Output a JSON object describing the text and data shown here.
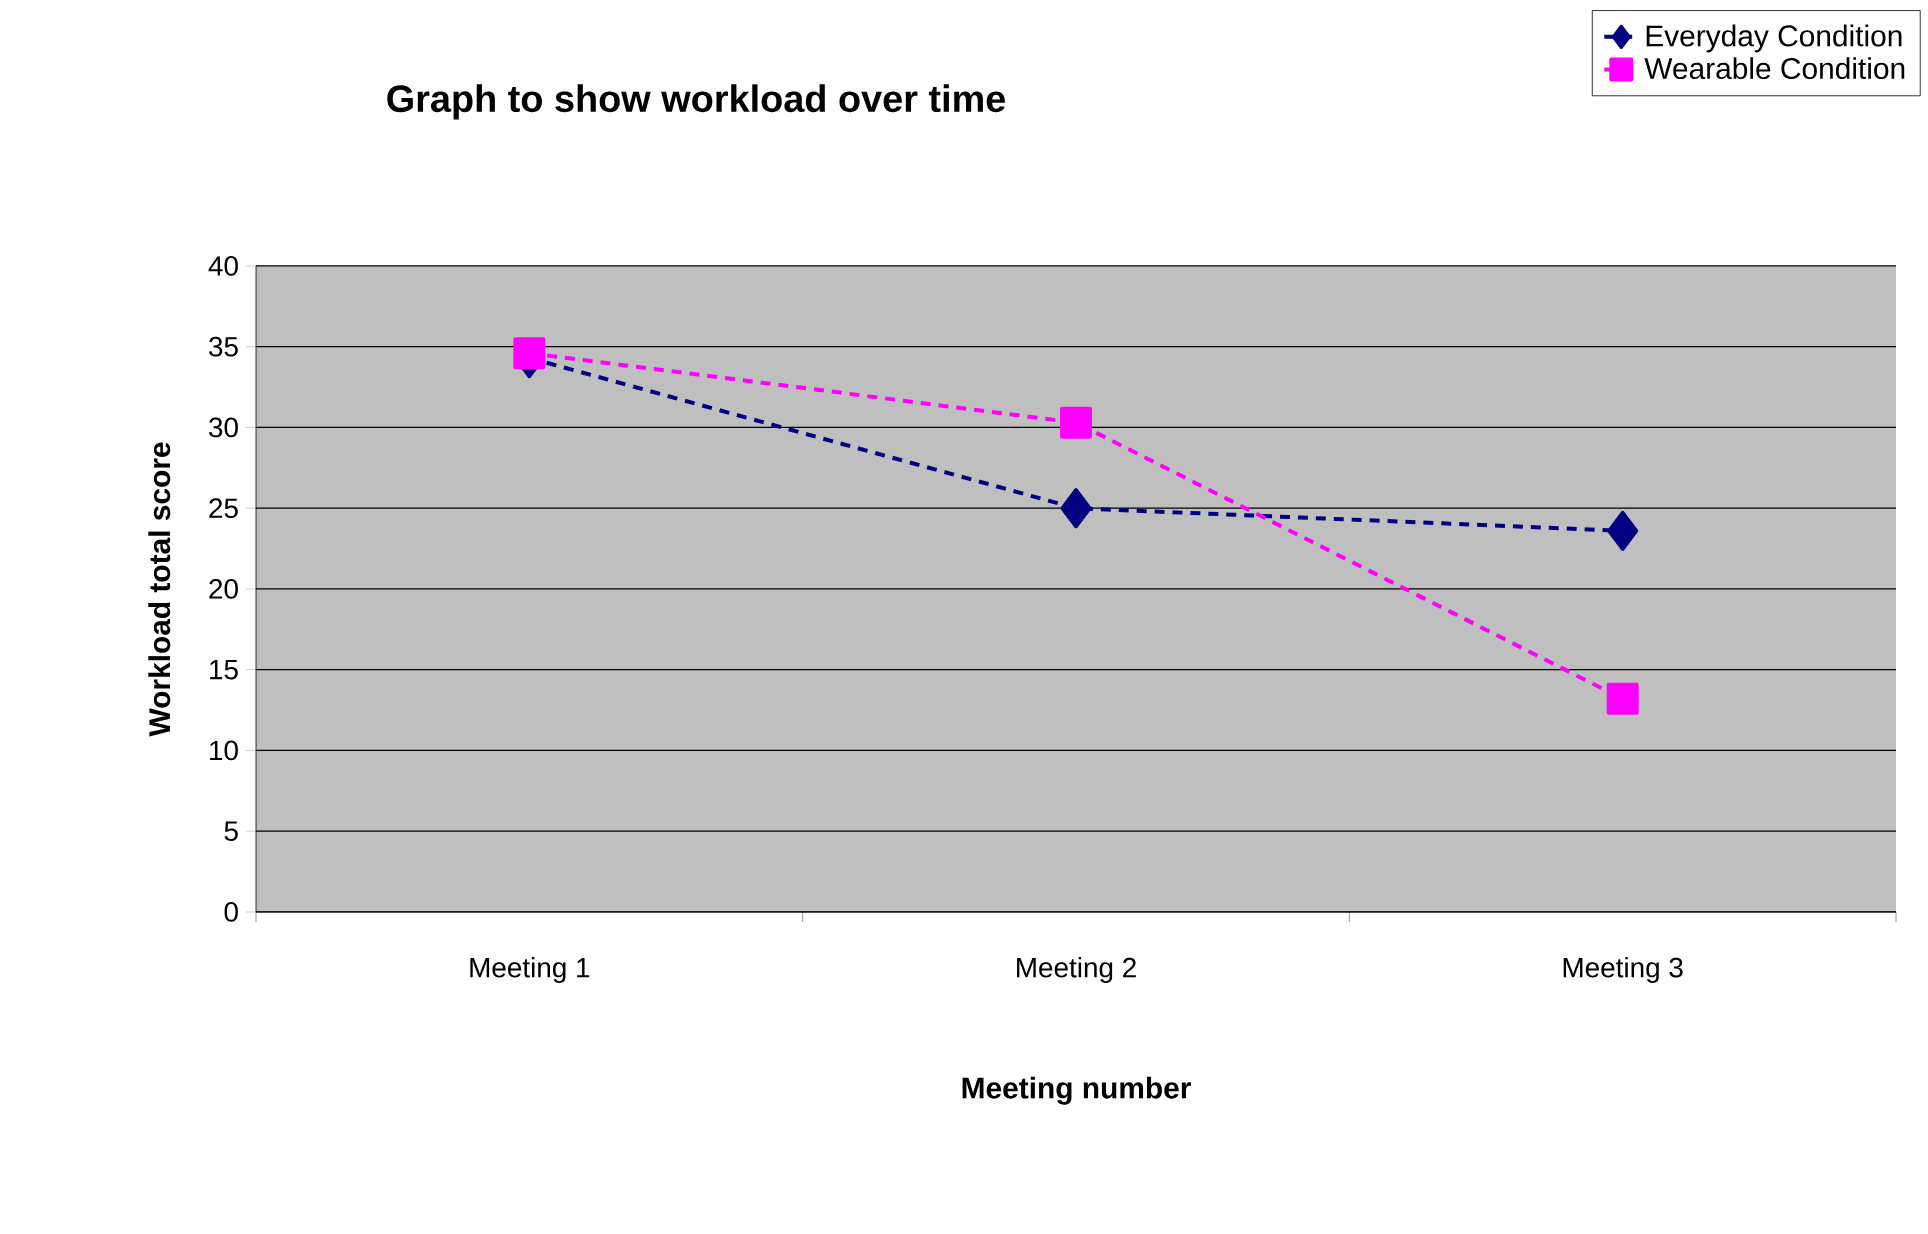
{
  "chart_data": {
    "type": "line",
    "title": "Graph to show workload over time",
    "xlabel": "Meeting number",
    "ylabel": "Workload total score",
    "categories": [
      "Meeting 1",
      "Meeting 2",
      "Meeting 3"
    ],
    "series": [
      {
        "name": "Everyday Condition",
        "color": "#000080",
        "marker": "diamond",
        "values": [
          34.3,
          25.0,
          23.6
        ]
      },
      {
        "name": "Wearable Condition",
        "color": "#ff00ff",
        "marker": "square",
        "values": [
          34.6,
          30.3,
          13.2
        ]
      }
    ],
    "ylim": [
      0,
      40
    ],
    "yticks": [
      0,
      5,
      10,
      15,
      20,
      25,
      30,
      35,
      40
    ],
    "grid": "y",
    "legend": "top right",
    "line_style": "dashed"
  }
}
